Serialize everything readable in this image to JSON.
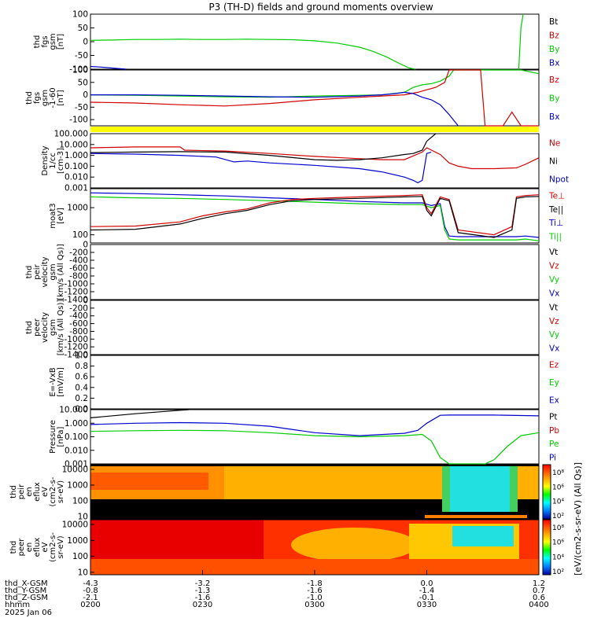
{
  "title": "P3 (TH-D) fields and ground moments overview",
  "date_label": "2025 Jan 06",
  "colors": {
    "black": "#000000",
    "red": "#d00000",
    "green": "#00cc00",
    "blue": "#0000cc",
    "yellow": "#ffff00",
    "axis": "#000000"
  },
  "chart_data": [
    {
      "type": "line",
      "ylabel_lines": [
        "thd",
        "fgs",
        "gsm",
        "[nT]"
      ],
      "ylim": [
        -100,
        100
      ],
      "ytick_labels": [
        "100",
        "50",
        "0",
        "-50",
        "-100"
      ],
      "legend": [
        {
          "label": "Bt",
          "color": "#000000"
        },
        {
          "label": "Bz",
          "color": "#d00000"
        },
        {
          "label": "By",
          "color": "#00cc00"
        },
        {
          "label": "Bx",
          "color": "#0000cc"
        }
      ],
      "series": [
        {
          "color": "#00cc00",
          "x": [
            0,
            0.05,
            0.1,
            0.15,
            0.2,
            0.25,
            0.3,
            0.35,
            0.4,
            0.45,
            0.5,
            0.55,
            0.6,
            0.63,
            0.66,
            0.69,
            0.71,
            0.725
          ],
          "y": [
            5,
            6,
            8,
            8,
            9,
            8,
            8,
            9,
            8,
            7,
            3,
            -5,
            -20,
            -35,
            -55,
            -80,
            -95,
            -100
          ]
        },
        {
          "color": "#00cc00",
          "x": [
            0.955,
            0.96,
            0.965
          ],
          "y": [
            -100,
            50,
            100
          ]
        },
        {
          "color": "#0000cc",
          "x": [
            0,
            0.02,
            0.05,
            0.08
          ],
          "y": [
            -90,
            -92,
            -96,
            -100
          ]
        }
      ]
    },
    {
      "type": "line",
      "ylabel_lines": [
        "thd",
        "fgs",
        "gsm",
        "-1-60",
        "[nT]"
      ],
      "ylim": [
        -125,
        100
      ],
      "ytick_labels": [
        "100",
        "50",
        "0",
        "-50",
        "-100"
      ],
      "legend": [
        {
          "label": "Bz",
          "color": "#d00000"
        },
        {
          "label": "By",
          "color": "#00cc00"
        },
        {
          "label": "Bx",
          "color": "#0000cc"
        }
      ],
      "series": [
        {
          "color": "#00cc00",
          "x": [
            0,
            0.1,
            0.2,
            0.3,
            0.4,
            0.5,
            0.6,
            0.65,
            0.7,
            0.72,
            0.74,
            0.76,
            0.78,
            0.8,
            0.81,
            0.83,
            0.86,
            0.88,
            0.9,
            0.93,
            0.96,
            1.0
          ],
          "y": [
            0,
            -2,
            -5,
            -8,
            -10,
            -5,
            -2,
            0,
            10,
            30,
            40,
            45,
            55,
            75,
            100,
            100,
            100,
            100,
            100,
            100,
            100,
            85
          ]
        },
        {
          "color": "#d00000",
          "x": [
            0,
            0.1,
            0.2,
            0.3,
            0.4,
            0.5,
            0.6,
            0.65,
            0.7,
            0.73,
            0.75,
            0.77,
            0.79,
            0.8,
            0.82,
            0.84,
            0.87,
            0.88,
            0.9,
            0.92,
            0.94,
            0.96,
            0.98,
            1.0
          ],
          "y": [
            -30,
            -33,
            -40,
            -45,
            -35,
            -20,
            -10,
            -5,
            0,
            10,
            20,
            30,
            50,
            100,
            100,
            100,
            100,
            -125,
            -125,
            -125,
            -70,
            -125,
            -125,
            -125
          ]
        },
        {
          "color": "#0000cc",
          "x": [
            0,
            0.1,
            0.2,
            0.3,
            0.4,
            0.5,
            0.6,
            0.65,
            0.68,
            0.7,
            0.72,
            0.74,
            0.76,
            0.78,
            0.8,
            0.82
          ],
          "y": [
            0,
            0,
            -2,
            -5,
            -8,
            -10,
            -5,
            0,
            5,
            10,
            5,
            -10,
            -20,
            -40,
            -80,
            -125
          ]
        }
      ]
    },
    {
      "type": "line",
      "ylabel_lines": [
        "Density",
        "1/cc",
        "[cm-3]"
      ],
      "ylog": true,
      "ylim": [
        0.001,
        100
      ],
      "ytick_values": [
        100,
        10,
        1,
        0.1,
        0.01,
        0.001
      ],
      "ytick_labels": [
        "100.000",
        "10.000",
        "1.000",
        "0.100",
        "0.010",
        "0.001"
      ],
      "legend": [
        {
          "label": "Ne",
          "color": "#d00000"
        },
        {
          "label": "Ni",
          "color": "#000000"
        },
        {
          "label": "Npot",
          "color": "#0000cc"
        }
      ],
      "series": [
        {
          "color": "#d00000",
          "x": [
            0,
            0.1,
            0.2,
            0.21,
            0.3,
            0.4,
            0.5,
            0.6,
            0.65,
            0.7,
            0.74,
            0.75,
            0.78,
            0.8,
            0.82,
            0.85,
            0.9,
            0.95,
            0.97,
            1.0
          ],
          "y": [
            5,
            6,
            6,
            3,
            2.5,
            1.5,
            0.8,
            0.5,
            0.4,
            0.4,
            2.0,
            5,
            1.2,
            0.2,
            0.1,
            0.06,
            0.06,
            0.07,
            0.15,
            0.6
          ]
        },
        {
          "color": "#000000",
          "x": [
            0,
            0.1,
            0.2,
            0.3,
            0.4,
            0.5,
            0.55,
            0.6,
            0.65,
            0.7,
            0.72,
            0.74,
            0.75,
            0.77
          ],
          "y": [
            1.8,
            2,
            2.2,
            2,
            1,
            0.4,
            0.35,
            0.4,
            0.6,
            1.2,
            1.5,
            3,
            20,
            100
          ]
        },
        {
          "color": "#0000cc",
          "x": [
            0,
            0.1,
            0.2,
            0.28,
            0.32,
            0.35,
            0.4,
            0.5,
            0.6,
            0.65,
            0.7,
            0.72,
            0.73,
            0.74,
            0.75,
            0.76
          ],
          "y": [
            1.5,
            1.3,
            1.0,
            0.7,
            0.25,
            0.3,
            0.2,
            0.12,
            0.06,
            0.03,
            0.01,
            0.005,
            0.003,
            0.005,
            1.5,
            2.0
          ]
        }
      ]
    },
    {
      "type": "line",
      "ylabel_lines": [
        "moat3",
        "[eV]"
      ],
      "ylog": true,
      "ylim": [
        50,
        5000
      ],
      "ytick_values": [
        1000,
        100
      ],
      "ytick_labels": [
        "1000",
        "100"
      ],
      "legend": [
        {
          "label": "Te⊥",
          "color": "#d00000"
        },
        {
          "label": "Te||",
          "color": "#000000"
        },
        {
          "label": "Ti⊥",
          "color": "#0000cc"
        },
        {
          "label": "Ti||",
          "color": "#00cc00"
        }
      ],
      "series": [
        {
          "color": "#0000cc",
          "x": [
            0,
            0.1,
            0.2,
            0.3,
            0.4,
            0.5,
            0.6,
            0.7,
            0.74,
            0.76,
            0.78,
            0.79,
            0.8,
            0.82,
            0.9,
            0.95,
            0.97,
            1.0
          ],
          "y": [
            3500,
            3300,
            3000,
            2700,
            2300,
            2000,
            1700,
            1500,
            1500,
            1200,
            1400,
            200,
            90,
            85,
            85,
            85,
            90,
            80
          ]
        },
        {
          "color": "#00cc00",
          "x": [
            0,
            0.1,
            0.2,
            0.3,
            0.4,
            0.5,
            0.6,
            0.7,
            0.74,
            0.76,
            0.78,
            0.79,
            0.8,
            0.82,
            0.9,
            0.95,
            0.97,
            1.0
          ],
          "y": [
            2500,
            2300,
            2200,
            2000,
            1800,
            1600,
            1400,
            1300,
            1300,
            1000,
            1200,
            150,
            70,
            65,
            65,
            65,
            70,
            60
          ]
        },
        {
          "color": "#d00000",
          "x": [
            0,
            0.1,
            0.2,
            0.25,
            0.3,
            0.35,
            0.4,
            0.45,
            0.5,
            0.6,
            0.7,
            0.74,
            0.75,
            0.76,
            0.78,
            0.8,
            0.82,
            0.9,
            0.94,
            0.95,
            0.97,
            1.0
          ],
          "y": [
            200,
            210,
            300,
            500,
            700,
            900,
            1500,
            2000,
            2200,
            2500,
            2800,
            3000,
            1000,
            600,
            2500,
            2000,
            150,
            100,
            200,
            2500,
            2800,
            3000
          ]
        },
        {
          "color": "#000000",
          "x": [
            0,
            0.1,
            0.2,
            0.25,
            0.3,
            0.35,
            0.4,
            0.45,
            0.5,
            0.6,
            0.7,
            0.74,
            0.75,
            0.76,
            0.78,
            0.8,
            0.82,
            0.9,
            0.94,
            0.95,
            0.97,
            1.0
          ],
          "y": [
            150,
            160,
            250,
            400,
            600,
            800,
            1300,
            1800,
            2000,
            2200,
            2500,
            2600,
            800,
            500,
            2200,
            1800,
            120,
            80,
            150,
            2200,
            2500,
            2600
          ]
        }
      ]
    },
    {
      "type": "line",
      "ylabel_lines": [
        "thd",
        "peir",
        "velocity",
        "gsm",
        "[km/s (All Qs)]"
      ],
      "ylim": [
        -1400,
        0
      ],
      "ytick_labels": [
        "0",
        "-200",
        "-400",
        "-600",
        "-800",
        "-1000",
        "-1200",
        "-1400"
      ],
      "legend": [
        {
          "label": "Vt",
          "color": "#000000"
        },
        {
          "label": "Vz",
          "color": "#d00000"
        },
        {
          "label": "Vy",
          "color": "#00cc00"
        },
        {
          "label": "Vx",
          "color": "#0000cc"
        }
      ],
      "series": []
    },
    {
      "type": "line",
      "ylabel_lines": [
        "thd",
        "peer",
        "velocity",
        "gsm",
        "[km/s (All Qs)]"
      ],
      "ylim": [
        -1400,
        0
      ],
      "ytick_labels": [
        "0",
        "-200",
        "-400",
        "-600",
        "-800",
        "-1000",
        "-1200",
        "-1400"
      ],
      "legend": [
        {
          "label": "Vt",
          "color": "#000000"
        },
        {
          "label": "Vz",
          "color": "#d00000"
        },
        {
          "label": "Vy",
          "color": "#00cc00"
        },
        {
          "label": "Vx",
          "color": "#0000cc"
        }
      ],
      "series": []
    },
    {
      "type": "line",
      "ylabel_lines": [
        "E=-VxB",
        "[mV/m]"
      ],
      "ylim": [
        0,
        1
      ],
      "ytick_labels": [
        "1.0",
        "0.8",
        "0.6",
        "0.4",
        "0.2",
        "0.0"
      ],
      "legend": [
        {
          "label": "Ez",
          "color": "#d00000"
        },
        {
          "label": "Ey",
          "color": "#00cc00"
        },
        {
          "label": "Ex",
          "color": "#0000cc"
        }
      ],
      "series": []
    },
    {
      "type": "line",
      "ylabel_lines": [
        "Pressure",
        "[nPa]"
      ],
      "ylog": true,
      "ylim": [
        0.001,
        10
      ],
      "ytick_values": [
        10,
        1,
        0.1,
        0.01,
        0.001
      ],
      "ytick_labels": [
        "10.000",
        "1.000",
        "0.100",
        "0.010",
        "0.001"
      ],
      "legend": [
        {
          "label": "Pt",
          "color": "#000000"
        },
        {
          "label": "Pb",
          "color": "#d00000"
        },
        {
          "label": "Pe",
          "color": "#00cc00"
        },
        {
          "label": "Pi",
          "color": "#0000cc"
        }
      ],
      "series": [
        {
          "color": "#000000",
          "x": [
            0,
            0.1,
            0.2,
            0.22
          ],
          "y": [
            2.5,
            5,
            9,
            10
          ]
        },
        {
          "color": "#0000cc",
          "x": [
            0,
            0.1,
            0.2,
            0.3,
            0.4,
            0.5,
            0.6,
            0.7,
            0.73,
            0.75,
            0.78,
            0.8,
            0.9,
            1.0
          ],
          "y": [
            0.8,
            1.0,
            1.1,
            1.0,
            0.6,
            0.2,
            0.12,
            0.18,
            0.3,
            1.0,
            3.8,
            4.0,
            4.0,
            3.5
          ]
        },
        {
          "color": "#00cc00",
          "x": [
            0,
            0.1,
            0.2,
            0.3,
            0.4,
            0.5,
            0.6,
            0.7,
            0.74,
            0.76,
            0.78,
            0.8,
            0.88,
            0.9,
            0.93,
            0.96,
            1.0
          ],
          "y": [
            0.25,
            0.28,
            0.3,
            0.28,
            0.2,
            0.12,
            0.1,
            0.12,
            0.15,
            0.05,
            0.003,
            0.001,
            0.001,
            0.002,
            0.02,
            0.12,
            0.2
          ]
        }
      ]
    },
    {
      "type": "heatmap",
      "ylabel_lines": [
        "thd",
        "peir",
        "en",
        "eflux",
        "eV",
        "(cm2-s-",
        "sr-eV)"
      ],
      "ylog": true,
      "ylim": [
        7,
        20000
      ],
      "ytick_values": [
        10000,
        1000,
        100,
        10
      ],
      "ytick_labels": [
        "10000",
        "1000",
        "100",
        "10"
      ],
      "colorbar_labels": [
        "10⁸",
        "10⁶",
        "10⁴",
        "10²"
      ]
    },
    {
      "type": "heatmap",
      "ylabel_lines": [
        "thd",
        "peer",
        "en",
        "eflux",
        "eV",
        "(cm2-s-",
        "sr-eV)"
      ],
      "ylog": true,
      "ylim": [
        7,
        20000
      ],
      "ytick_values": [
        10000,
        1000,
        100,
        10
      ],
      "ytick_labels": [
        "10000",
        "1000",
        "100",
        "10"
      ],
      "colorbar_labels": [
        "10⁸",
        "10⁶",
        "10⁴",
        "10²"
      ]
    }
  ],
  "colorbar_title": "[eV/(cm2-s-sr-eV) (All Qs)]",
  "x_axis": {
    "row_labels": [
      "thd_X-GSM",
      "thd_Y-GSM",
      "thd_Z-GSM",
      "hhmm"
    ],
    "columns": [
      {
        "values": [
          "-4.3",
          "-0.8",
          "-2.1",
          "0200"
        ]
      },
      {
        "values": [
          "-3.2",
          "-1.3",
          "-1.6",
          "0230"
        ]
      },
      {
        "values": [
          "-1.8",
          "-1.6",
          "-1.0",
          "0300"
        ]
      },
      {
        "values": [
          "0.0",
          "-1.4",
          "-0.1",
          "0330"
        ]
      },
      {
        "values": [
          "1.2",
          "0.7",
          "0.6",
          "0400"
        ]
      }
    ]
  }
}
